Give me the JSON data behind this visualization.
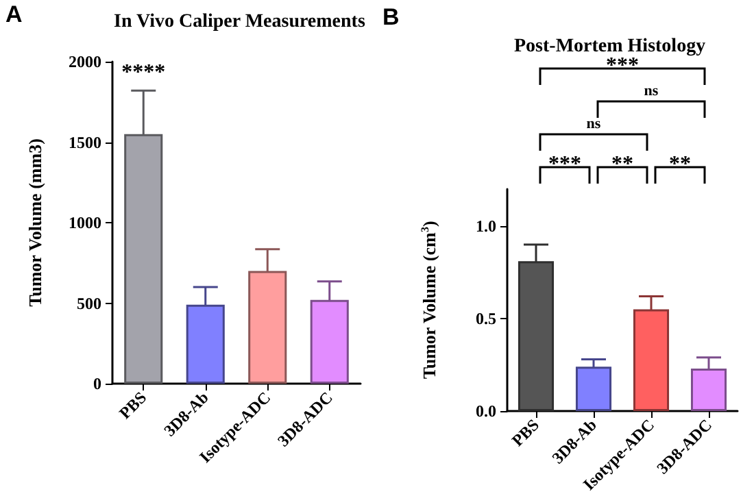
{
  "chart_data": [
    {
      "type": "bar",
      "title": "In Vivo Caliper Measurements",
      "ylabel": "Tumor Volume (mm3)",
      "categories": [
        "PBS",
        "3D8-Ab",
        "Isotype-ADC",
        "3D8-ADC"
      ],
      "values": [
        1550,
        490,
        700,
        520
      ],
      "errors": [
        270,
        110,
        135,
        115
      ],
      "colors": [
        "#a3a3ab",
        "#8080ff",
        "#ff9e9e",
        "#e28cff"
      ],
      "ylim": [
        0,
        2000
      ],
      "yticks": [
        0,
        500,
        1000,
        1500,
        2000
      ],
      "grid": false,
      "annotations": [
        "A",
        "****"
      ]
    },
    {
      "type": "bar",
      "title": "Post-Mortem Histology",
      "ylabel": "Tumor Volume (cm$^{3}$)",
      "categories": [
        "PBS",
        "3D8-Ab",
        "Isotype-ADC",
        "3D8-ADC"
      ],
      "values": [
        0.81,
        0.24,
        0.55,
        0.23
      ],
      "errors": [
        0.09,
        0.04,
        0.07,
        0.06
      ],
      "colors": [
        "#555555",
        "#8080ff",
        "#ff6060",
        "#e28cff"
      ],
      "ylim": [
        0,
        1.2
      ],
      "yticks": [
        {
          "value": 0,
          "label": "0.0"
        },
        {
          "value": 0.5,
          "label": "0.5"
        },
        {
          "value": 1,
          "label": "1.0"
        }
      ],
      "grid": false,
      "annotations": [
        "B",
        "***",
        "ns",
        "ns",
        "***",
        "**",
        "**"
      ]
    }
  ]
}
